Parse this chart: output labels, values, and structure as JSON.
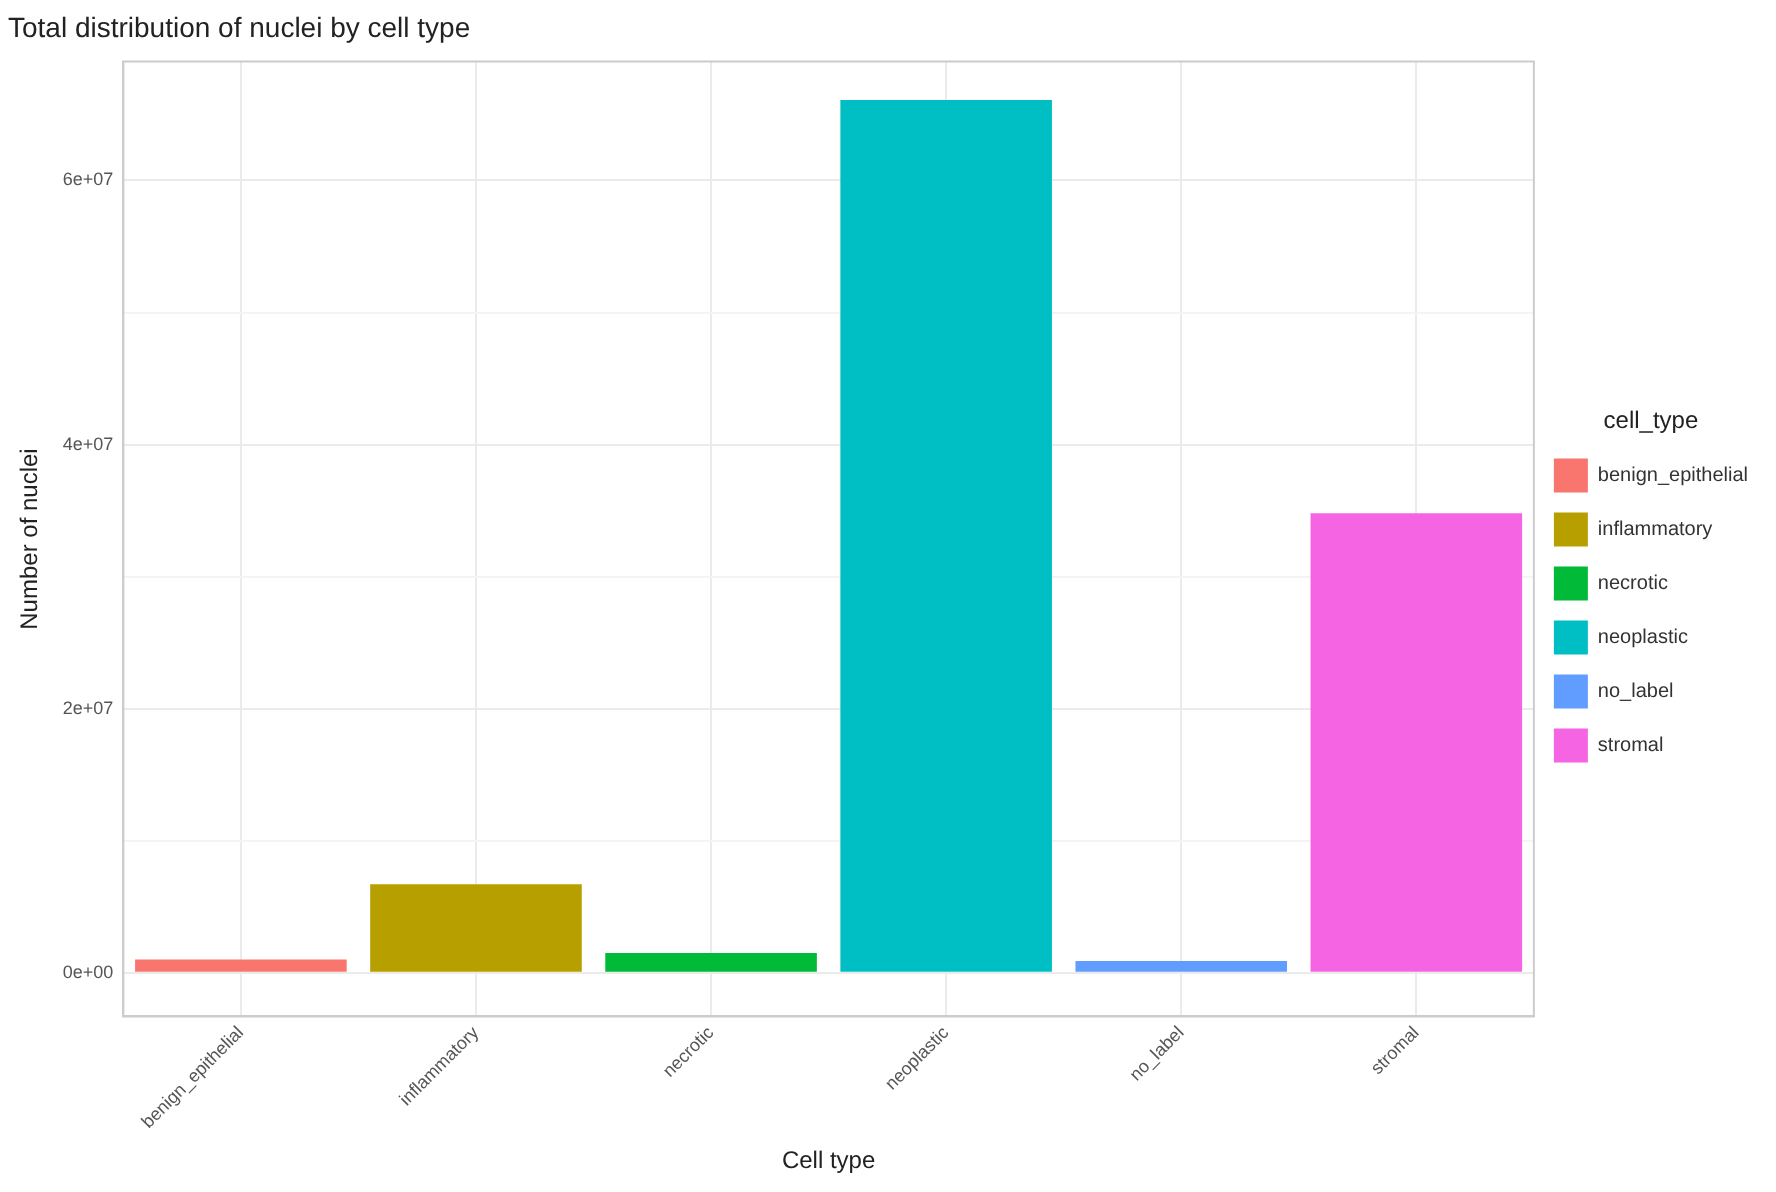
{
  "chart_data": {
    "type": "bar",
    "title": "Total distribution of nuclei by cell type",
    "xlabel": "Cell type",
    "ylabel": "Number of nuclei",
    "legend_title": "cell_type",
    "categories": [
      "benign_epithelial",
      "inflammatory",
      "necrotic",
      "neoplastic",
      "no_label",
      "stromal"
    ],
    "series": [
      {
        "name": "benign_epithelial",
        "color": "#f8766d",
        "values": [
          1000000,
          null,
          null,
          null,
          null,
          null
        ]
      },
      {
        "name": "inflammatory",
        "color": "#b79f00",
        "values": [
          null,
          6700000,
          null,
          null,
          null,
          null
        ]
      },
      {
        "name": "necrotic",
        "color": "#00ba38",
        "values": [
          null,
          null,
          1500000,
          null,
          null,
          null
        ]
      },
      {
        "name": "neoplastic",
        "color": "#00bfc4",
        "values": [
          null,
          null,
          null,
          66100000,
          null,
          null
        ]
      },
      {
        "name": "no_label",
        "color": "#619cff",
        "values": [
          null,
          null,
          null,
          null,
          900000,
          null
        ]
      },
      {
        "name": "stromal",
        "color": "#f564e3",
        "values": [
          null,
          null,
          null,
          null,
          null,
          34800000
        ]
      }
    ],
    "ylim": [
      -3300000,
      69000000
    ],
    "yticks": [
      {
        "value": 0,
        "label": "0e+00"
      },
      {
        "value": 10000000,
        "label": null
      },
      {
        "value": 20000000,
        "label": "2e+07"
      },
      {
        "value": 30000000,
        "label": null
      },
      {
        "value": 40000000,
        "label": "4e+07"
      },
      {
        "value": 50000000,
        "label": null
      },
      {
        "value": 60000000,
        "label": "6e+07"
      }
    ],
    "grid": true,
    "legend": "right"
  }
}
